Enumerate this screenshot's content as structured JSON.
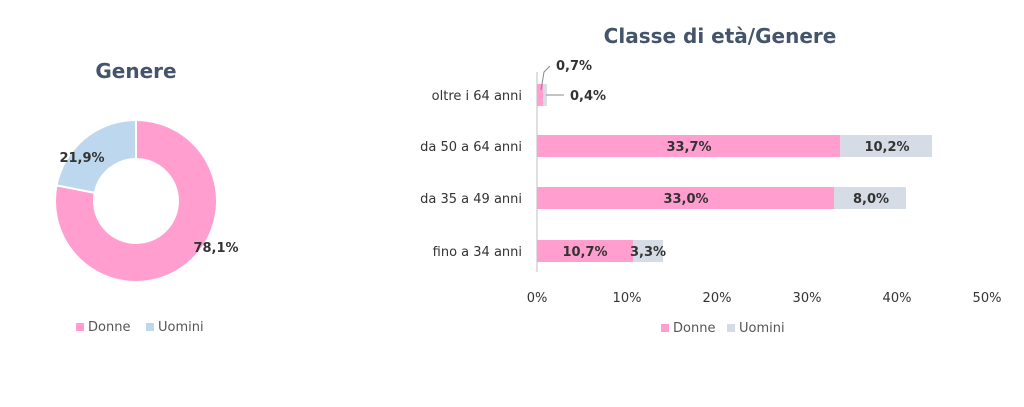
{
  "chart_data": [
    {
      "type": "pie",
      "title": "Genere",
      "labels": [
        "Donne",
        "Uomini"
      ],
      "values": [
        78.1,
        21.9
      ],
      "value_labels": [
        "78,1%",
        "21,9%"
      ],
      "colors": [
        "#ff9ecf",
        "#bdd7ee"
      ],
      "legend_position": "bottom"
    },
    {
      "type": "bar",
      "orientation": "horizontal",
      "stacked": true,
      "title": "Classe di età/Genere",
      "categories": [
        "oltre i 64 anni",
        "da 50 a 64 anni",
        "da 35 a 49 anni",
        "fino a 34 anni"
      ],
      "series": [
        {
          "name": "Donne",
          "values": [
            0.7,
            33.7,
            33.0,
            10.7
          ],
          "value_labels": [
            "0,7%",
            "33,7%",
            "33,0%",
            "10,7%"
          ],
          "color": "#ff9ecf"
        },
        {
          "name": "Uomini",
          "values": [
            0.4,
            10.2,
            8.0,
            3.3
          ],
          "value_labels": [
            "0,4%",
            "10,2%",
            "8,0%",
            "3,3%"
          ],
          "color": "#d6dce5"
        }
      ],
      "xlim": [
        0,
        50
      ],
      "xticks": [
        0,
        10,
        20,
        30,
        40,
        50
      ],
      "xtick_labels": [
        "0%",
        "10%",
        "20%",
        "30%",
        "40%",
        "50%"
      ],
      "grid": false,
      "legend_position": "bottom"
    }
  ]
}
